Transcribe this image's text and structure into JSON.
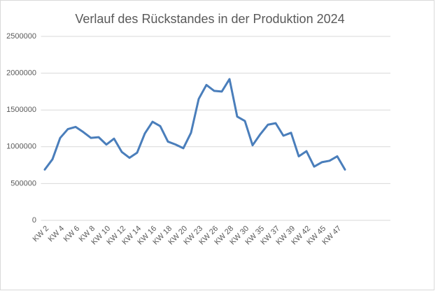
{
  "chart_data": {
    "type": "line",
    "title": "Verlauf des Rückstandes in der Produktion 2024",
    "categories": [
      "KW 2",
      null,
      "KW 4",
      null,
      "KW 6",
      null,
      "KW 8",
      null,
      "KW 10",
      null,
      "KW 12",
      null,
      "KW 14",
      null,
      "KW 16",
      null,
      "KW 18",
      null,
      "KW 20",
      null,
      "KW 23",
      null,
      "KW 26",
      null,
      "KW 28",
      null,
      "KW 30",
      null,
      "KW 35",
      null,
      "KW 37",
      null,
      "KW 39",
      null,
      "KW 42",
      null,
      "KW 45",
      null,
      "KW 47",
      null
    ],
    "values": [
      690000,
      830000,
      1120000,
      1240000,
      1270000,
      1200000,
      1120000,
      1130000,
      1030000,
      1110000,
      930000,
      850000,
      920000,
      1180000,
      1340000,
      1280000,
      1070000,
      1030000,
      980000,
      1190000,
      1650000,
      1840000,
      1760000,
      1750000,
      1920000,
      1410000,
      1350000,
      1020000,
      1170000,
      1300000,
      1320000,
      1150000,
      1190000,
      870000,
      940000,
      730000,
      790000,
      810000,
      870000,
      690000
    ],
    "color": "#4a7ebb",
    "ylim": [
      0,
      2500000
    ],
    "yticks": [
      0,
      500000,
      1000000,
      1500000,
      2000000,
      2500000
    ],
    "grid": true
  }
}
